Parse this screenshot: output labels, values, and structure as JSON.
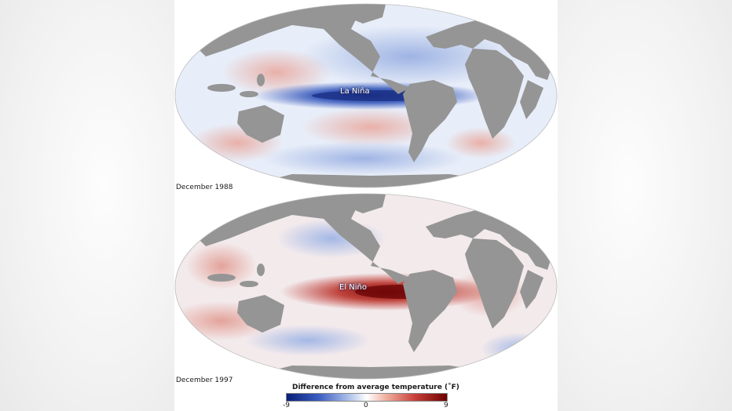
{
  "maps": [
    {
      "caption": "December 1988",
      "label": "La Niña",
      "anomaly": "cold",
      "ocean_color": "#e8eef9",
      "land_color": "#959595"
    },
    {
      "caption": "December 1997",
      "label": "El Niño",
      "anomaly": "warm",
      "ocean_color": "#f3eaec",
      "land_color": "#959595"
    }
  ],
  "legend": {
    "title": "Difference from average temperature (˚F)",
    "min_label": "-9",
    "mid_label": "0",
    "max_label": "9",
    "cold_color": "#0a1f78",
    "warm_color": "#6e0000"
  }
}
